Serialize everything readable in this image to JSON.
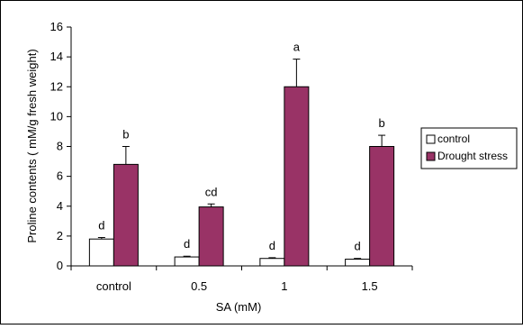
{
  "chart_data": {
    "type": "bar",
    "xlabel": "SA (mM)",
    "ylabel": "Proline contents ( mM/g fresh weight)",
    "ylim": [
      0,
      16
    ],
    "yticks": [
      "0",
      "2",
      "4",
      "6",
      "8",
      "10",
      "12",
      "14",
      "16"
    ],
    "categories": [
      "control",
      "0.5",
      "1",
      "1.5"
    ],
    "series": [
      {
        "name": "control",
        "color": "#ffffff",
        "values": [
          1.8,
          0.6,
          0.5,
          0.45
        ],
        "errors": [
          0.1,
          0.05,
          0.05,
          0.05
        ],
        "labels": [
          "d",
          "d",
          "d",
          "d"
        ]
      },
      {
        "name": "Drought stress",
        "color": "#993366",
        "values": [
          6.8,
          3.95,
          12.0,
          8.0
        ],
        "errors": [
          1.2,
          0.2,
          1.85,
          0.75
        ],
        "labels": [
          "b",
          "cd",
          "a",
          "b"
        ]
      }
    ],
    "grid": false,
    "legend_position": "right"
  }
}
